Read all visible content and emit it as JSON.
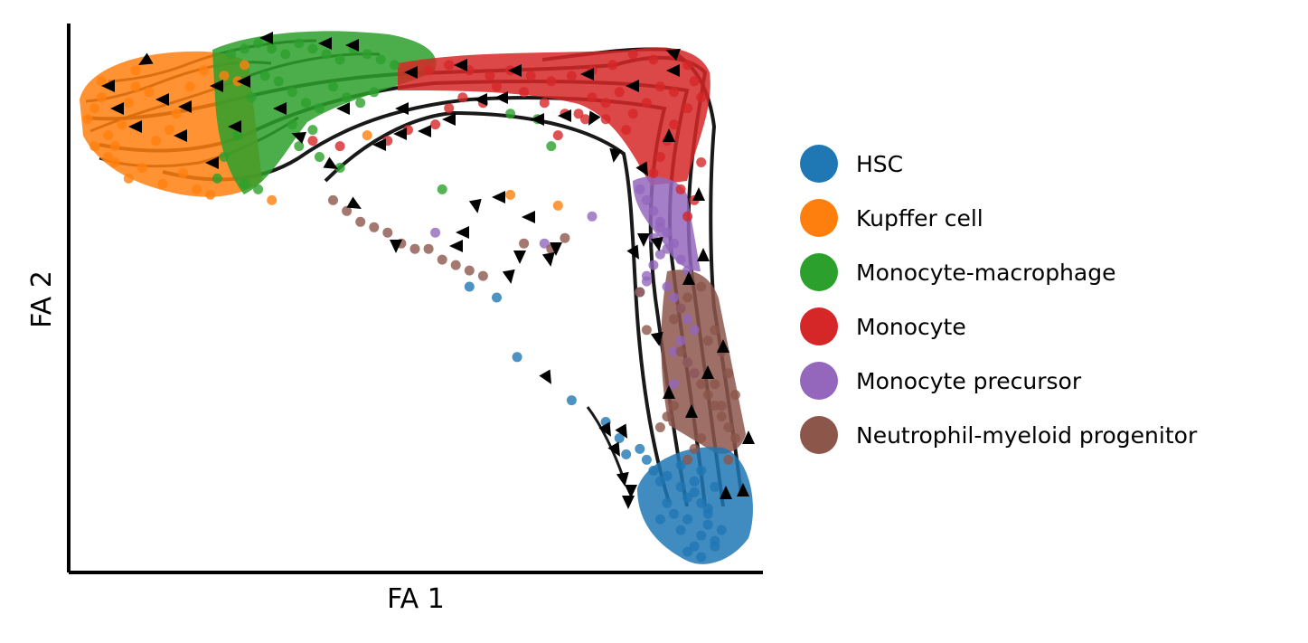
{
  "chart_data": {
    "type": "scatter",
    "title": "",
    "xlabel": "FA 1",
    "ylabel": "FA 2",
    "xlim": [
      0,
      100
    ],
    "ylim": [
      0,
      100
    ],
    "grid": false,
    "ticks": false,
    "legend_position": "right",
    "overlay": "velocity streamlines with arrowheads (black)",
    "series": [
      {
        "name": "HSC",
        "color": "#1f77b4",
        "x": [
          91,
          92,
          93,
          90,
          89,
          94,
          88,
          92,
          91,
          93,
          90,
          95,
          89,
          87,
          86,
          85,
          84,
          83,
          81,
          80,
          78,
          73,
          65,
          62,
          58,
          90,
          92,
          94,
          93,
          91,
          89,
          92,
          94,
          87,
          86
        ],
        "y": [
          4,
          6,
          8,
          9,
          7,
          5,
          10,
          12,
          14,
          11,
          13,
          7,
          15,
          17,
          16,
          18,
          20,
          22,
          21,
          24,
          27,
          31,
          39,
          50,
          52,
          3,
          2,
          4,
          10,
          16,
          19,
          18,
          15,
          12,
          9
        ]
      },
      {
        "name": "Kupffer cell",
        "color": "#ff7f0e",
        "x": [
          2,
          3,
          4,
          5,
          6,
          4,
          7,
          8,
          9,
          6,
          10,
          12,
          11,
          14,
          16,
          13,
          18,
          20,
          19,
          22,
          24,
          25,
          17,
          15,
          3,
          5,
          8,
          9,
          43,
          64,
          71,
          29
        ],
        "y": [
          83,
          85,
          87,
          80,
          78,
          90,
          82,
          86,
          92,
          75,
          74,
          79,
          88,
          81,
          73,
          71,
          70,
          69,
          92,
          91,
          90,
          93,
          89,
          84,
          78,
          76,
          72,
          89,
          80,
          69,
          67,
          68
        ]
      },
      {
        "name": "Monocyte-macrophage",
        "color": "#2ca02c",
        "x": [
          23,
          25,
          27,
          29,
          31,
          33,
          35,
          37,
          39,
          41,
          43,
          45,
          47,
          30,
          32,
          34,
          36,
          26,
          28,
          38,
          40,
          24,
          22,
          21,
          33,
          36,
          39,
          42,
          44,
          32,
          35,
          25,
          27,
          54,
          64,
          68,
          70
        ],
        "y": [
          95,
          96,
          97,
          96,
          95,
          97,
          96,
          95,
          94,
          96,
          95,
          94,
          93,
          90,
          88,
          86,
          85,
          87,
          91,
          89,
          87,
          80,
          76,
          72,
          78,
          76,
          74,
          86,
          88,
          82,
          81,
          71,
          70,
          70,
          84,
          83,
          78
        ]
      },
      {
        "name": "Monocyte",
        "color": "#d62728",
        "x": [
          52,
          55,
          58,
          61,
          64,
          67,
          70,
          73,
          76,
          79,
          82,
          85,
          88,
          90,
          91,
          92,
          90,
          88,
          87,
          86,
          85,
          89,
          91,
          90,
          88,
          86,
          84,
          82,
          80,
          78,
          76,
          74,
          60,
          57,
          55,
          62,
          66,
          69,
          72,
          75,
          35,
          39,
          46,
          49,
          53,
          71,
          78,
          81,
          92
        ],
        "y": [
          92,
          93,
          92,
          91,
          92,
          91,
          90,
          91,
          92,
          93,
          95,
          94,
          95,
          93,
          90,
          87,
          85,
          82,
          79,
          76,
          73,
          70,
          68,
          65,
          88,
          89,
          86,
          84,
          88,
          86,
          87,
          84,
          86,
          87,
          85,
          89,
          88,
          86,
          84,
          83,
          79,
          78,
          79,
          81,
          82,
          80,
          83,
          81,
          75
        ]
      },
      {
        "name": "Monocyte precursor",
        "color": "#9467bd",
        "x": [
          83,
          84,
          85,
          86,
          87,
          88,
          86,
          85,
          84,
          87,
          88,
          89,
          90,
          91,
          89,
          88,
          90,
          91,
          88,
          86,
          85,
          87,
          89,
          90,
          84,
          83,
          53,
          76,
          69
        ],
        "y": [
          70,
          68,
          66,
          64,
          62,
          60,
          58,
          56,
          54,
          52,
          50,
          48,
          46,
          44,
          42,
          40,
          38,
          36,
          34,
          63,
          61,
          59,
          57,
          55,
          53,
          51,
          62,
          65,
          60
        ]
      },
      {
        "name": "Neutrophil-myeloid progenitor",
        "color": "#8c564b",
        "x": [
          89,
          90,
          91,
          92,
          93,
          94,
          95,
          96,
          92,
          91,
          90,
          93,
          94,
          95,
          96,
          97,
          88,
          87,
          86,
          88,
          89,
          94,
          95,
          97,
          90,
          92,
          96,
          38,
          40,
          42,
          44,
          46,
          48,
          50,
          52,
          54,
          56,
          58,
          60,
          66,
          70,
          72,
          83,
          84
        ],
        "y": [
          40,
          38,
          36,
          34,
          32,
          30,
          28,
          26,
          24,
          22,
          20,
          42,
          44,
          40,
          36,
          32,
          30,
          28,
          26,
          46,
          48,
          34,
          30,
          24,
          50,
          52,
          20,
          68,
          66,
          64,
          63,
          62,
          60,
          59,
          59,
          57,
          56,
          55,
          54,
          60,
          59,
          61,
          51,
          44
        ]
      }
    ],
    "legend": [
      {
        "label": "HSC",
        "color": "#1f77b4"
      },
      {
        "label": "Kupffer cell",
        "color": "#ff7f0e"
      },
      {
        "label": "Monocyte-macrophage",
        "color": "#2ca02c"
      },
      {
        "label": "Monocyte",
        "color": "#d62728"
      },
      {
        "label": "Monocyte precursor",
        "color": "#9467bd"
      },
      {
        "label": "Neutrophil-myeloid progenitor",
        "color": "#8c564b"
      }
    ]
  }
}
